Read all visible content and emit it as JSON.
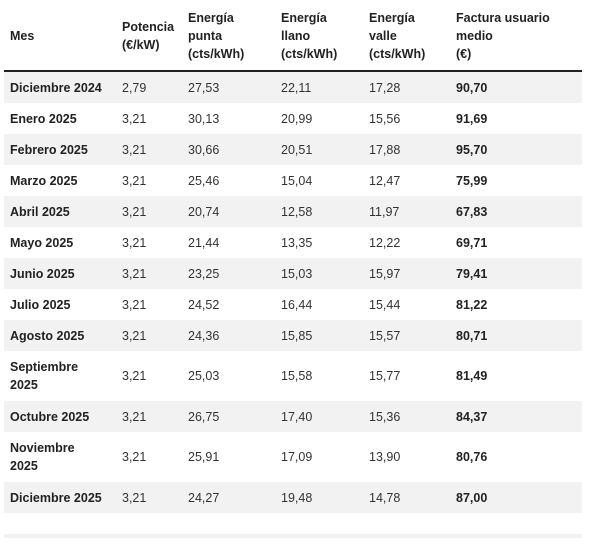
{
  "table": {
    "headers": {
      "mes": "Mes",
      "potencia": [
        "Potencia",
        "(€/kW)"
      ],
      "punta": [
        "Energía",
        "punta",
        "(cts/kWh)"
      ],
      "llano": [
        "Energía",
        "llano",
        "(cts/kWh)"
      ],
      "valle": [
        "Energía",
        "valle",
        "(cts/kWh)"
      ],
      "factura": [
        "Factura usuario",
        "medio",
        "(€)"
      ]
    },
    "rows": [
      {
        "mes": [
          "Diciembre 2024"
        ],
        "potencia": "2,79",
        "punta": "27,53",
        "llano": "22,11",
        "valle": "17,28",
        "factura": "90,70"
      },
      {
        "mes": [
          "Enero 2025"
        ],
        "potencia": "3,21",
        "punta": "30,13",
        "llano": "20,99",
        "valle": "15,56",
        "factura": "91,69"
      },
      {
        "mes": [
          "Febrero 2025"
        ],
        "potencia": "3,21",
        "punta": "30,66",
        "llano": "20,51",
        "valle": "17,88",
        "factura": "95,70"
      },
      {
        "mes": [
          "Marzo 2025"
        ],
        "potencia": "3,21",
        "punta": "25,46",
        "llano": "15,04",
        "valle": "12,47",
        "factura": "75,99"
      },
      {
        "mes": [
          "Abril 2025"
        ],
        "potencia": "3,21",
        "punta": "20,74",
        "llano": "12,58",
        "valle": "11,97",
        "factura": "67,83"
      },
      {
        "mes": [
          "Mayo 2025"
        ],
        "potencia": "3,21",
        "punta": "21,44",
        "llano": "13,35",
        "valle": "12,22",
        "factura": "69,71"
      },
      {
        "mes": [
          "Junio 2025"
        ],
        "potencia": "3,21",
        "punta": "23,25",
        "llano": "15,03",
        "valle": "15,97",
        "factura": "79,41"
      },
      {
        "mes": [
          "Julio 2025"
        ],
        "potencia": "3,21",
        "punta": "24,52",
        "llano": "16,44",
        "valle": "15,44",
        "factura": "81,22"
      },
      {
        "mes": [
          "Agosto 2025"
        ],
        "potencia": "3,21",
        "punta": "24,36",
        "llano": "15,85",
        "valle": "15,57",
        "factura": "80,71"
      },
      {
        "mes": [
          "Septiembre",
          "2025"
        ],
        "potencia": "3,21",
        "punta": "25,03",
        "llano": "15,58",
        "valle": "15,77",
        "factura": "81,49"
      },
      {
        "mes": [
          "Octubre 2025"
        ],
        "potencia": "3,21",
        "punta": "26,75",
        "llano": "17,40",
        "valle": "15,36",
        "factura": "84,37"
      },
      {
        "mes": [
          "Noviembre",
          "2025"
        ],
        "potencia": "3,21",
        "punta": "25,91",
        "llano": "17,09",
        "valle": "13,90",
        "factura": "80,76"
      },
      {
        "mes": [
          "Diciembre 2025"
        ],
        "potencia": "3,21",
        "punta": "24,27",
        "llano": "19,48",
        "valle": "14,78",
        "factura": "87,00"
      }
    ]
  }
}
